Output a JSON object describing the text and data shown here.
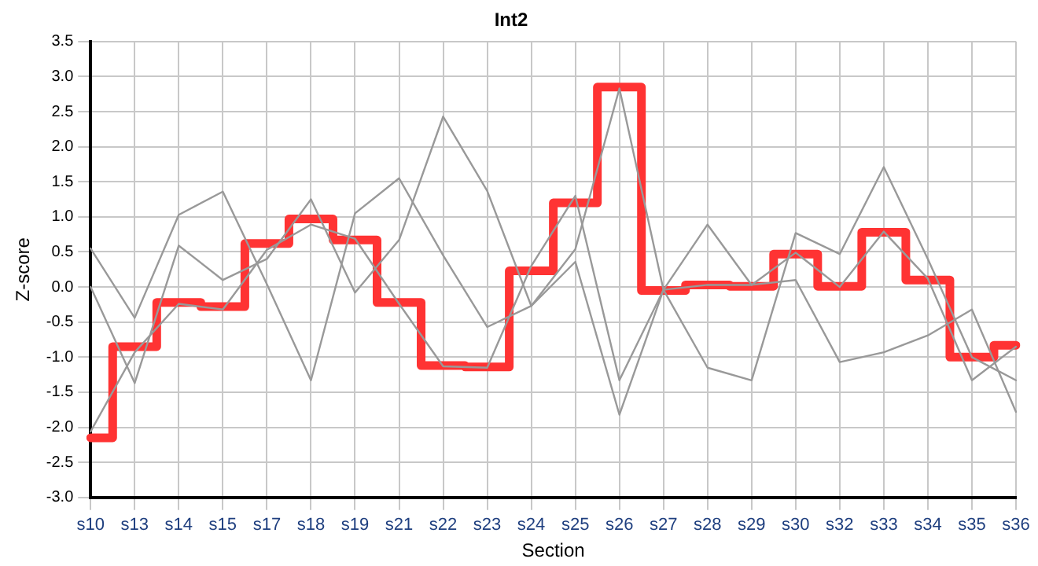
{
  "chart_data": {
    "type": "line",
    "title": "Int2",
    "xlabel": "Section",
    "ylabel": "Z-score",
    "categories": [
      "s10",
      "s13",
      "s14",
      "s15",
      "s17",
      "s18",
      "s19",
      "s21",
      "s22",
      "s23",
      "s24",
      "s25",
      "s26",
      "s27",
      "s28",
      "s29",
      "s30",
      "s32",
      "s33",
      "s34",
      "s35",
      "s36"
    ],
    "series": [
      {
        "type": "line",
        "color": "#999999",
        "values": [
          0.55,
          -0.44,
          1.03,
          1.36,
          0.04,
          -1.33,
          1.05,
          1.55,
          0.45,
          -0.57,
          -0.27,
          0.54,
          2.83,
          -0.04,
          -1.15,
          -1.33,
          0.77,
          0.47,
          1.71,
          0.4,
          -1.0,
          -1.33
        ]
      },
      {
        "type": "line",
        "color": "#999999",
        "values": [
          0.0,
          -1.37,
          0.59,
          0.1,
          0.4,
          1.25,
          -0.08,
          0.67,
          2.43,
          1.37,
          -0.27,
          0.36,
          -1.82,
          -0.04,
          0.89,
          0.03,
          0.1,
          -1.07,
          -0.93,
          -0.69,
          -0.32,
          -1.78
        ]
      },
      {
        "type": "line",
        "color": "#999999",
        "values": [
          -2.06,
          -0.93,
          -0.24,
          -0.32,
          0.53,
          0.89,
          0.69,
          -0.24,
          -1.13,
          -1.15,
          0.3,
          1.3,
          -1.33,
          -0.04,
          0.03,
          0.03,
          0.49,
          0.0,
          0.79,
          0.12,
          -1.33,
          -0.85
        ]
      },
      {
        "type": "step",
        "color": "#ff3333",
        "values": [
          -2.15,
          -0.85,
          -0.22,
          -0.28,
          0.62,
          0.97,
          0.67,
          -0.22,
          -1.12,
          -1.14,
          0.23,
          1.2,
          2.85,
          -0.05,
          0.03,
          0.01,
          0.47,
          0.01,
          0.78,
          0.1,
          -1.0,
          -0.83
        ]
      }
    ],
    "ylim": [
      -3.0,
      3.5
    ],
    "yticks": [
      {
        "value": -3,
        "label": "-3.0"
      },
      {
        "value": -2.5,
        "label": "-2.5"
      },
      {
        "value": -2,
        "label": "-2.0"
      },
      {
        "value": -1.5,
        "label": "-1.5"
      },
      {
        "value": -1,
        "label": "-1.0"
      },
      {
        "value": -0.5,
        "label": "-0.5"
      },
      {
        "value": 0,
        "label": "0.0"
      },
      {
        "value": 0.5,
        "label": "0.5"
      },
      {
        "value": 1,
        "label": "1.0"
      },
      {
        "value": 1.5,
        "label": "1.5"
      },
      {
        "value": 2,
        "label": "2.0"
      },
      {
        "value": 2.5,
        "label": "2.5"
      },
      {
        "value": 3,
        "label": "3.0"
      },
      {
        "value": 3.5,
        "label": "3.5"
      }
    ],
    "grid": true,
    "legend": false,
    "marker": "none"
  }
}
